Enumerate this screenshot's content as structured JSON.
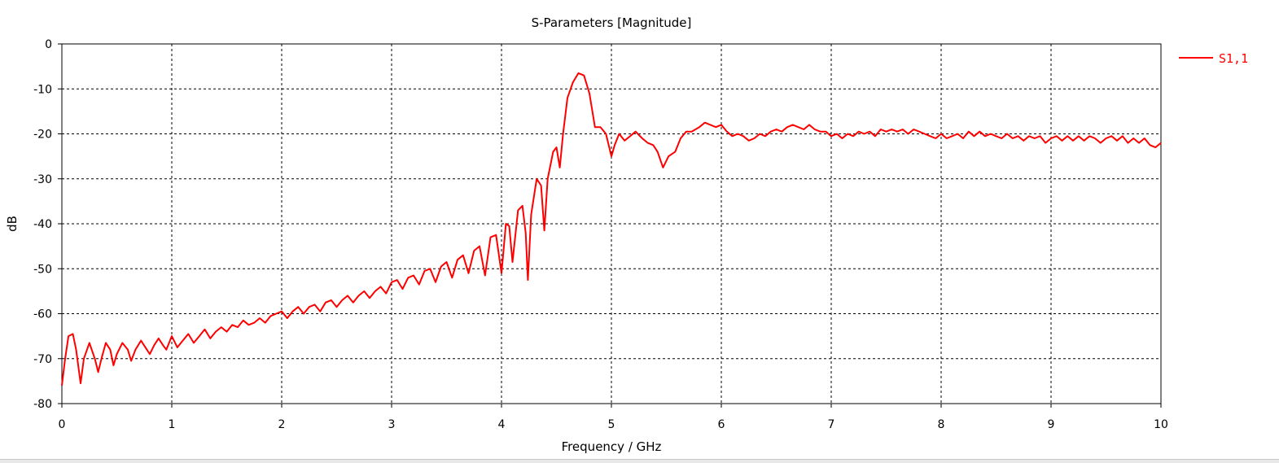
{
  "chart_data": {
    "type": "line",
    "title": "S-Parameters [Magnitude]",
    "xlabel": "Frequency / GHz",
    "ylabel": "dB",
    "xlim": [
      0,
      10
    ],
    "ylim": [
      -80,
      0
    ],
    "xticks": [
      "0",
      "1",
      "2",
      "3",
      "4",
      "5",
      "6",
      "7",
      "8",
      "9",
      "10"
    ],
    "yticks": [
      "0",
      "-10",
      "-20",
      "-30",
      "-40",
      "-50",
      "-60",
      "-70",
      "-80"
    ],
    "grid": true,
    "legend_position": "top-right",
    "series": [
      {
        "name": "S1,1",
        "color": "#ff0000",
        "points": [
          [
            0.0,
            -76.0
          ],
          [
            0.03,
            -70.0
          ],
          [
            0.06,
            -65.0
          ],
          [
            0.1,
            -64.5
          ],
          [
            0.13,
            -68.0
          ],
          [
            0.17,
            -75.5
          ],
          [
            0.2,
            -70.0
          ],
          [
            0.25,
            -66.5
          ],
          [
            0.3,
            -70.0
          ],
          [
            0.33,
            -73.0
          ],
          [
            0.36,
            -70.0
          ],
          [
            0.4,
            -66.5
          ],
          [
            0.44,
            -68.0
          ],
          [
            0.47,
            -71.5
          ],
          [
            0.5,
            -69.0
          ],
          [
            0.55,
            -66.5
          ],
          [
            0.6,
            -68.0
          ],
          [
            0.63,
            -70.5
          ],
          [
            0.67,
            -68.0
          ],
          [
            0.72,
            -66.0
          ],
          [
            0.76,
            -67.5
          ],
          [
            0.8,
            -69.0
          ],
          [
            0.84,
            -67.0
          ],
          [
            0.88,
            -65.5
          ],
          [
            0.92,
            -67.0
          ],
          [
            0.95,
            -68.0
          ],
          [
            1.0,
            -65.0
          ],
          [
            1.05,
            -67.5
          ],
          [
            1.1,
            -66.0
          ],
          [
            1.15,
            -64.5
          ],
          [
            1.2,
            -66.5
          ],
          [
            1.25,
            -65.0
          ],
          [
            1.3,
            -63.5
          ],
          [
            1.35,
            -65.5
          ],
          [
            1.4,
            -64.0
          ],
          [
            1.45,
            -63.0
          ],
          [
            1.5,
            -64.0
          ],
          [
            1.55,
            -62.5
          ],
          [
            1.6,
            -63.0
          ],
          [
            1.65,
            -61.5
          ],
          [
            1.7,
            -62.5
          ],
          [
            1.75,
            -62.0
          ],
          [
            1.8,
            -61.0
          ],
          [
            1.85,
            -62.0
          ],
          [
            1.9,
            -60.5
          ],
          [
            1.95,
            -60.0
          ],
          [
            2.0,
            -59.5
          ],
          [
            2.05,
            -61.0
          ],
          [
            2.1,
            -59.5
          ],
          [
            2.15,
            -58.5
          ],
          [
            2.2,
            -60.0
          ],
          [
            2.25,
            -58.5
          ],
          [
            2.3,
            -58.0
          ],
          [
            2.35,
            -59.5
          ],
          [
            2.4,
            -57.5
          ],
          [
            2.45,
            -57.0
          ],
          [
            2.5,
            -58.5
          ],
          [
            2.55,
            -57.0
          ],
          [
            2.6,
            -56.0
          ],
          [
            2.65,
            -57.5
          ],
          [
            2.7,
            -56.0
          ],
          [
            2.75,
            -55.0
          ],
          [
            2.8,
            -56.5
          ],
          [
            2.85,
            -55.0
          ],
          [
            2.9,
            -54.0
          ],
          [
            2.95,
            -55.5
          ],
          [
            3.0,
            -53.0
          ],
          [
            3.05,
            -52.5
          ],
          [
            3.1,
            -54.5
          ],
          [
            3.15,
            -52.0
          ],
          [
            3.2,
            -51.5
          ],
          [
            3.25,
            -53.5
          ],
          [
            3.3,
            -50.5
          ],
          [
            3.35,
            -50.0
          ],
          [
            3.4,
            -53.0
          ],
          [
            3.45,
            -49.5
          ],
          [
            3.5,
            -48.5
          ],
          [
            3.55,
            -52.0
          ],
          [
            3.6,
            -48.0
          ],
          [
            3.65,
            -47.0
          ],
          [
            3.7,
            -51.0
          ],
          [
            3.75,
            -46.0
          ],
          [
            3.8,
            -45.0
          ],
          [
            3.85,
            -51.5
          ],
          [
            3.9,
            -43.0
          ],
          [
            3.95,
            -42.5
          ],
          [
            4.0,
            -51.0
          ],
          [
            4.04,
            -40.0
          ],
          [
            4.07,
            -40.5
          ],
          [
            4.1,
            -48.5
          ],
          [
            4.15,
            -37.0
          ],
          [
            4.19,
            -36.0
          ],
          [
            4.22,
            -42.0
          ],
          [
            4.24,
            -52.5
          ],
          [
            4.27,
            -38.0
          ],
          [
            4.32,
            -30.0
          ],
          [
            4.36,
            -31.5
          ],
          [
            4.39,
            -41.5
          ],
          [
            4.42,
            -30.0
          ],
          [
            4.47,
            -24.0
          ],
          [
            4.5,
            -23.0
          ],
          [
            4.53,
            -27.5
          ],
          [
            4.56,
            -20.0
          ],
          [
            4.6,
            -12.0
          ],
          [
            4.65,
            -8.5
          ],
          [
            4.7,
            -6.5
          ],
          [
            4.75,
            -7.0
          ],
          [
            4.8,
            -11.0
          ],
          [
            4.85,
            -18.5
          ],
          [
            4.9,
            -18.5
          ],
          [
            4.95,
            -20.0
          ],
          [
            5.0,
            -25.0
          ],
          [
            5.03,
            -22.5
          ],
          [
            5.07,
            -20.0
          ],
          [
            5.12,
            -21.5
          ],
          [
            5.17,
            -20.5
          ],
          [
            5.22,
            -19.5
          ],
          [
            5.28,
            -21.0
          ],
          [
            5.33,
            -22.0
          ],
          [
            5.38,
            -22.5
          ],
          [
            5.42,
            -24.0
          ],
          [
            5.47,
            -27.5
          ],
          [
            5.52,
            -25.0
          ],
          [
            5.58,
            -24.0
          ],
          [
            5.63,
            -21.0
          ],
          [
            5.68,
            -19.5
          ],
          [
            5.73,
            -19.5
          ],
          [
            5.8,
            -18.5
          ],
          [
            5.85,
            -17.5
          ],
          [
            5.9,
            -18.0
          ],
          [
            5.95,
            -18.5
          ],
          [
            6.0,
            -18.0
          ],
          [
            6.05,
            -19.5
          ],
          [
            6.1,
            -20.5
          ],
          [
            6.15,
            -20.0
          ],
          [
            6.2,
            -20.5
          ],
          [
            6.25,
            -21.5
          ],
          [
            6.3,
            -21.0
          ],
          [
            6.35,
            -20.0
          ],
          [
            6.4,
            -20.5
          ],
          [
            6.45,
            -19.5
          ],
          [
            6.5,
            -19.0
          ],
          [
            6.55,
            -19.5
          ],
          [
            6.6,
            -18.5
          ],
          [
            6.65,
            -18.0
          ],
          [
            6.7,
            -18.5
          ],
          [
            6.75,
            -19.0
          ],
          [
            6.8,
            -18.0
          ],
          [
            6.85,
            -19.0
          ],
          [
            6.9,
            -19.5
          ],
          [
            6.95,
            -19.5
          ],
          [
            7.0,
            -20.5
          ],
          [
            7.05,
            -20.0
          ],
          [
            7.1,
            -21.0
          ],
          [
            7.15,
            -20.0
          ],
          [
            7.2,
            -20.5
          ],
          [
            7.25,
            -19.5
          ],
          [
            7.3,
            -20.0
          ],
          [
            7.35,
            -19.5
          ],
          [
            7.4,
            -20.5
          ],
          [
            7.45,
            -19.0
          ],
          [
            7.5,
            -19.5
          ],
          [
            7.55,
            -19.0
          ],
          [
            7.6,
            -19.5
          ],
          [
            7.65,
            -19.0
          ],
          [
            7.7,
            -20.0
          ],
          [
            7.75,
            -19.0
          ],
          [
            7.8,
            -19.5
          ],
          [
            7.85,
            -20.0
          ],
          [
            7.9,
            -20.5
          ],
          [
            7.95,
            -21.0
          ],
          [
            8.0,
            -20.0
          ],
          [
            8.05,
            -21.0
          ],
          [
            8.1,
            -20.5
          ],
          [
            8.15,
            -20.0
          ],
          [
            8.2,
            -21.0
          ],
          [
            8.25,
            -19.5
          ],
          [
            8.3,
            -20.5
          ],
          [
            8.35,
            -19.5
          ],
          [
            8.4,
            -20.5
          ],
          [
            8.45,
            -20.0
          ],
          [
            8.5,
            -20.5
          ],
          [
            8.55,
            -21.0
          ],
          [
            8.6,
            -20.0
          ],
          [
            8.65,
            -21.0
          ],
          [
            8.7,
            -20.5
          ],
          [
            8.75,
            -21.5
          ],
          [
            8.8,
            -20.5
          ],
          [
            8.85,
            -21.0
          ],
          [
            8.9,
            -20.5
          ],
          [
            8.95,
            -22.0
          ],
          [
            9.0,
            -21.0
          ],
          [
            9.05,
            -20.5
          ],
          [
            9.1,
            -21.5
          ],
          [
            9.15,
            -20.5
          ],
          [
            9.2,
            -21.5
          ],
          [
            9.25,
            -20.5
          ],
          [
            9.3,
            -21.5
          ],
          [
            9.35,
            -20.5
          ],
          [
            9.4,
            -21.0
          ],
          [
            9.45,
            -22.0
          ],
          [
            9.5,
            -21.0
          ],
          [
            9.55,
            -20.5
          ],
          [
            9.6,
            -21.5
          ],
          [
            9.65,
            -20.5
          ],
          [
            9.7,
            -22.0
          ],
          [
            9.75,
            -21.0
          ],
          [
            9.8,
            -22.0
          ],
          [
            9.85,
            -21.0
          ],
          [
            9.9,
            -22.5
          ],
          [
            9.95,
            -23.0
          ],
          [
            10.0,
            -22.0
          ]
        ]
      }
    ]
  }
}
